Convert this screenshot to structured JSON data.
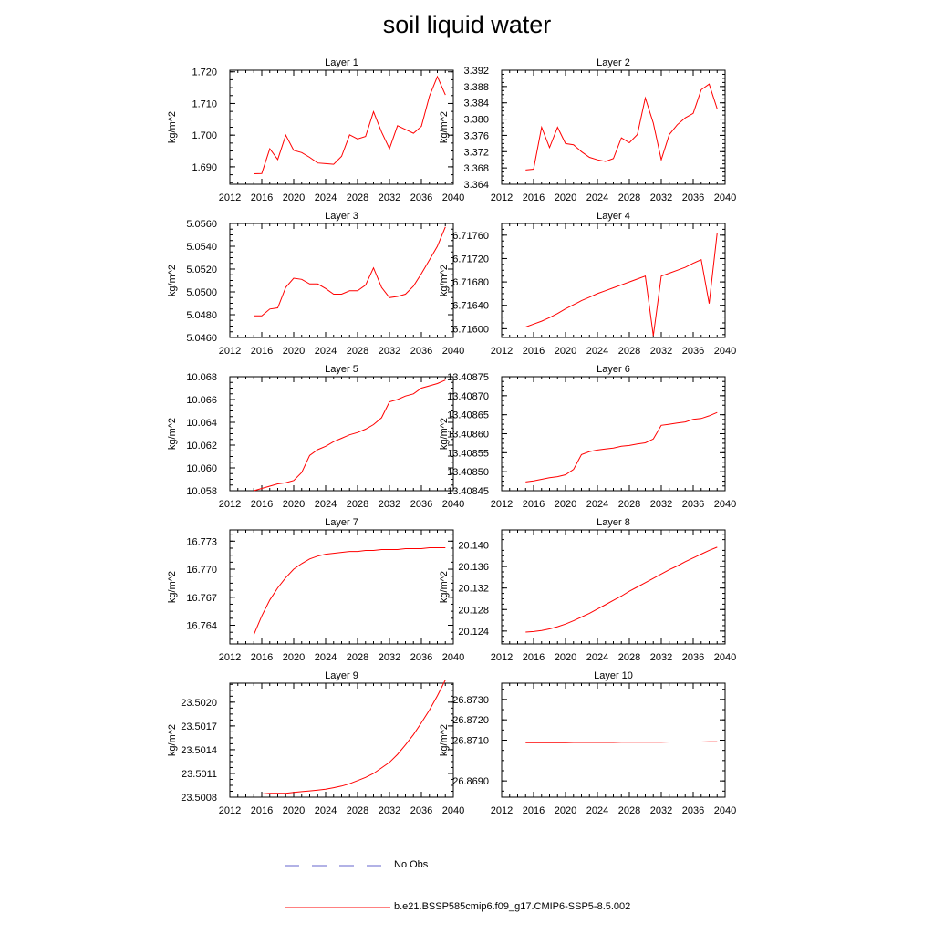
{
  "figure": {
    "title": "soil liquid water"
  },
  "legend": [
    {
      "label": "No Obs",
      "color": "#6666cc",
      "style": "dashed"
    },
    {
      "label": "b.e21.BSSP585cmip6.f09_g17.CMIP6-SSP5-8.5.002",
      "color": "#ff0000",
      "style": "solid"
    }
  ],
  "chart_data": [
    {
      "type": "line",
      "title": "Layer 1",
      "ylabel": "kg/m^2",
      "xlim": [
        2012,
        2040
      ],
      "ylim": [
        1.6845,
        1.7205
      ],
      "xticks": [
        "2012",
        "2016",
        "2020",
        "2024",
        "2028",
        "2032",
        "2036",
        "2040"
      ],
      "yticks": [
        "1.690",
        "1.700",
        "1.710",
        "1.720"
      ],
      "ytick_values": [
        1.69,
        1.7,
        1.71,
        1.72
      ],
      "series": [
        {
          "color": "#ff0000",
          "x": [
            2015,
            2016,
            2017,
            2018,
            2019,
            2020,
            2021,
            2022,
            2023,
            2024,
            2025,
            2026,
            2027,
            2028,
            2029,
            2030,
            2031,
            2032,
            2033,
            2034,
            2035,
            2036,
            2037,
            2038,
            2039
          ],
          "y": [
            1.6878,
            1.6879,
            1.6957,
            1.6923,
            1.7,
            1.6952,
            1.6945,
            1.693,
            1.6912,
            1.691,
            1.6908,
            1.6933,
            1.7001,
            1.6988,
            1.6996,
            1.7074,
            1.701,
            1.6957,
            1.703,
            1.7018,
            1.7006,
            1.7028,
            1.7123,
            1.7185,
            1.7127
          ]
        }
      ]
    },
    {
      "type": "line",
      "title": "Layer 2",
      "ylabel": "kg/m^2",
      "xlim": [
        2012,
        2040
      ],
      "ylim": [
        3.364,
        3.392
      ],
      "xticks": [
        "2012",
        "2016",
        "2020",
        "2024",
        "2028",
        "2032",
        "2036",
        "2040"
      ],
      "yticks": [
        "3.364",
        "3.368",
        "3.372",
        "3.376",
        "3.380",
        "3.384",
        "3.388",
        "3.392"
      ],
      "ytick_values": [
        3.364,
        3.368,
        3.372,
        3.376,
        3.38,
        3.384,
        3.388,
        3.392
      ],
      "series": [
        {
          "color": "#ff0000",
          "x": [
            2015,
            2016,
            2017,
            2018,
            2019,
            2020,
            2021,
            2022,
            2023,
            2024,
            2025,
            2026,
            2027,
            2028,
            2029,
            2030,
            2031,
            2032,
            2033,
            2034,
            2035,
            2036,
            2037,
            2038,
            2039
          ],
          "y": [
            3.3675,
            3.3677,
            3.378,
            3.373,
            3.378,
            3.374,
            3.3737,
            3.372,
            3.3706,
            3.37,
            3.3696,
            3.3703,
            3.3754,
            3.3742,
            3.3762,
            3.3852,
            3.379,
            3.37,
            3.3762,
            3.3786,
            3.3803,
            3.3814,
            3.3872,
            3.3886,
            3.3825
          ]
        }
      ]
    },
    {
      "type": "line",
      "title": "Layer 3",
      "ylabel": "kg/m^2",
      "xlim": [
        2012,
        2040
      ],
      "ylim": [
        5.046,
        5.056
      ],
      "xticks": [
        "2012",
        "2016",
        "2020",
        "2024",
        "2028",
        "2032",
        "2036",
        "2040"
      ],
      "yticks": [
        "5.0460",
        "5.0480",
        "5.0500",
        "5.0520",
        "5.0540",
        "5.0560"
      ],
      "ytick_values": [
        5.046,
        5.048,
        5.05,
        5.052,
        5.054,
        5.056
      ],
      "series": [
        {
          "color": "#ff0000",
          "x": [
            2015,
            2016,
            2017,
            2018,
            2019,
            2020,
            2021,
            2022,
            2023,
            2024,
            2025,
            2026,
            2027,
            2028,
            2029,
            2030,
            2031,
            2032,
            2033,
            2034,
            2035,
            2036,
            2037,
            2038,
            2039
          ],
          "y": [
            5.0479,
            5.0479,
            5.0485,
            5.0486,
            5.0504,
            5.0512,
            5.0511,
            5.0507,
            5.0507,
            5.0503,
            5.0498,
            5.0498,
            5.0501,
            5.0501,
            5.0506,
            5.0521,
            5.0504,
            5.0495,
            5.0496,
            5.0498,
            5.0505,
            5.0516,
            5.0528,
            5.054,
            5.0557
          ]
        }
      ]
    },
    {
      "type": "line",
      "title": "Layer 4",
      "ylabel": "kg/m^2",
      "xlim": [
        2012,
        2040
      ],
      "ylim": [
        6.71585,
        6.7178
      ],
      "xticks": [
        "2012",
        "2016",
        "2020",
        "2024",
        "2028",
        "2032",
        "2036",
        "2040"
      ],
      "yticks": [
        "6.71600",
        "6.71640",
        "6.71680",
        "6.71720",
        "6.71760"
      ],
      "ytick_values": [
        6.716,
        6.7164,
        6.7168,
        6.7172,
        6.7176
      ],
      "series": [
        {
          "color": "#ff0000",
          "x": [
            2015,
            2016,
            2017,
            2018,
            2019,
            2020,
            2021,
            2022,
            2023,
            2024,
            2025,
            2026,
            2027,
            2028,
            2029,
            2030,
            2031,
            2032,
            2033,
            2034,
            2035,
            2036,
            2037,
            2038,
            2039
          ],
          "y": [
            6.71603,
            6.71608,
            6.71613,
            6.71619,
            6.71626,
            6.71634,
            6.71641,
            6.71648,
            6.71654,
            6.7166,
            6.71665,
            6.7167,
            6.71675,
            6.7168,
            6.71685,
            6.7169,
            6.71588,
            6.7169,
            6.71695,
            6.717,
            6.71705,
            6.71712,
            6.71718,
            6.71643,
            6.71764
          ]
        }
      ]
    },
    {
      "type": "line",
      "title": "Layer 5",
      "ylabel": "kg/m^2",
      "xlim": [
        2012,
        2040
      ],
      "ylim": [
        10.058,
        10.068
      ],
      "xticks": [
        "2012",
        "2016",
        "2020",
        "2024",
        "2028",
        "2032",
        "2036",
        "2040"
      ],
      "yticks": [
        "10.058",
        "10.060",
        "10.062",
        "10.064",
        "10.066",
        "10.068"
      ],
      "ytick_values": [
        10.058,
        10.06,
        10.062,
        10.064,
        10.066,
        10.068
      ],
      "series": [
        {
          "color": "#ff0000",
          "x": [
            2015,
            2016,
            2017,
            2018,
            2019,
            2020,
            2021,
            2022,
            2023,
            2024,
            2025,
            2026,
            2027,
            2028,
            2029,
            2030,
            2031,
            2032,
            2033,
            2034,
            2035,
            2036,
            2037,
            2038,
            2039
          ],
          "y": [
            10.058,
            10.0582,
            10.0584,
            10.0586,
            10.0587,
            10.0589,
            10.0596,
            10.0611,
            10.0616,
            10.0619,
            10.0623,
            10.0626,
            10.0629,
            10.0631,
            10.0634,
            10.0638,
            10.0644,
            10.0658,
            10.066,
            10.0663,
            10.0665,
            10.067,
            10.0672,
            10.0674,
            10.0677
          ]
        }
      ]
    },
    {
      "type": "line",
      "title": "Layer 6",
      "ylabel": "kg/m^2",
      "xlim": [
        2012,
        2040
      ],
      "ylim": [
        13.40845,
        13.40875
      ],
      "xticks": [
        "2012",
        "2016",
        "2020",
        "2024",
        "2028",
        "2032",
        "2036",
        "2040"
      ],
      "yticks": [
        "13.40845",
        "13.40850",
        "13.40855",
        "13.40860",
        "13.40865",
        "13.40870",
        "13.40875"
      ],
      "ytick_values": [
        13.40845,
        13.4085,
        13.40855,
        13.4086,
        13.40865,
        13.4087,
        13.40875
      ],
      "series": [
        {
          "color": "#ff0000",
          "x": [
            2015,
            2016,
            2017,
            2018,
            2019,
            2020,
            2021,
            2022,
            2023,
            2024,
            2025,
            2026,
            2027,
            2028,
            2029,
            2030,
            2031,
            2032,
            2033,
            2034,
            2035,
            2036,
            2037,
            2038,
            2039
          ],
          "y": [
            13.408473,
            13.408476,
            13.40848,
            13.408484,
            13.408487,
            13.408492,
            13.408506,
            13.408545,
            13.408553,
            13.408557,
            13.40856,
            13.408562,
            13.408567,
            13.408569,
            13.408573,
            13.408576,
            13.408586,
            13.408622,
            13.408625,
            13.408628,
            13.408631,
            13.408638,
            13.40864,
            13.408647,
            13.408656
          ]
        }
      ]
    },
    {
      "type": "line",
      "title": "Layer 7",
      "ylabel": "kg/m^2",
      "xlim": [
        2012,
        2040
      ],
      "ylim": [
        16.762,
        16.7742
      ],
      "xticks": [
        "2012",
        "2016",
        "2020",
        "2024",
        "2028",
        "2032",
        "2036",
        "2040"
      ],
      "yticks": [
        "16.764",
        "16.767",
        "16.770",
        "16.773"
      ],
      "ytick_values": [
        16.764,
        16.767,
        16.77,
        16.773
      ],
      "series": [
        {
          "color": "#ff0000",
          "x": [
            2015,
            2016,
            2017,
            2018,
            2019,
            2020,
            2021,
            2022,
            2023,
            2024,
            2025,
            2026,
            2027,
            2028,
            2029,
            2030,
            2031,
            2032,
            2033,
            2034,
            2035,
            2036,
            2037,
            2038,
            2039
          ],
          "y": [
            16.763,
            16.765,
            16.7667,
            16.768,
            16.7691,
            16.77,
            16.7706,
            16.7711,
            16.7714,
            16.7716,
            16.7717,
            16.7718,
            16.7719,
            16.7719,
            16.772,
            16.772,
            16.7721,
            16.7721,
            16.7721,
            16.7722,
            16.7722,
            16.7722,
            16.7723,
            16.7723,
            16.7723
          ]
        }
      ]
    },
    {
      "type": "line",
      "title": "Layer 8",
      "ylabel": "kg/m^2",
      "xlim": [
        2012,
        2040
      ],
      "ylim": [
        20.1216,
        20.1428
      ],
      "xticks": [
        "2012",
        "2016",
        "2020",
        "2024",
        "2028",
        "2032",
        "2036",
        "2040"
      ],
      "yticks": [
        "20.124",
        "20.128",
        "20.132",
        "20.136",
        "20.140"
      ],
      "ytick_values": [
        20.124,
        20.128,
        20.132,
        20.136,
        20.14
      ],
      "series": [
        {
          "color": "#ff0000",
          "x": [
            2015,
            2016,
            2017,
            2018,
            2019,
            2020,
            2021,
            2022,
            2023,
            2024,
            2025,
            2026,
            2027,
            2028,
            2029,
            2030,
            2031,
            2032,
            2033,
            2034,
            2035,
            2036,
            2037,
            2038,
            2039
          ],
          "y": [
            20.1238,
            20.1239,
            20.1241,
            20.1244,
            20.1248,
            20.1253,
            20.1259,
            20.1266,
            20.1273,
            20.1281,
            20.1289,
            20.1297,
            20.1305,
            20.1314,
            20.1322,
            20.133,
            20.1338,
            20.1346,
            20.1354,
            20.1361,
            20.1369,
            20.1376,
            20.1383,
            20.139,
            20.1396
          ]
        }
      ]
    },
    {
      "type": "line",
      "title": "Layer 9",
      "ylabel": "kg/m^2",
      "xlim": [
        2012,
        2040
      ],
      "ylim": [
        23.5008,
        23.50224
      ],
      "xticks": [
        "2012",
        "2016",
        "2020",
        "2024",
        "2028",
        "2032",
        "2036",
        "2040"
      ],
      "yticks": [
        "23.5008",
        "23.5011",
        "23.5014",
        "23.5017",
        "23.5020"
      ],
      "ytick_values": [
        23.5008,
        23.5011,
        23.5014,
        23.5017,
        23.502
      ],
      "series": [
        {
          "color": "#ff0000",
          "x": [
            2015,
            2016,
            2017,
            2018,
            2019,
            2020,
            2021,
            2022,
            2023,
            2024,
            2025,
            2026,
            2027,
            2028,
            2029,
            2030,
            2031,
            2032,
            2033,
            2034,
            2035,
            2036,
            2037,
            2038,
            2039
          ],
          "y": [
            23.50084,
            23.50084,
            23.50085,
            23.50085,
            23.50085,
            23.50086,
            23.50087,
            23.50088,
            23.50089,
            23.5009,
            23.50092,
            23.50094,
            23.50097,
            23.50101,
            23.50105,
            23.5011,
            23.50117,
            23.50124,
            23.50134,
            23.50146,
            23.50159,
            23.50174,
            23.5019,
            23.50208,
            23.50228
          ]
        }
      ]
    },
    {
      "type": "line",
      "title": "Layer 10",
      "ylabel": "kg/m^2",
      "xlim": [
        2012,
        2040
      ],
      "ylim": [
        26.8682,
        26.8738
      ],
      "xticks": [
        "2012",
        "2016",
        "2020",
        "2024",
        "2028",
        "2032",
        "2036",
        "2040"
      ],
      "yticks": [
        "26.8690",
        "26.8710",
        "26.8720",
        "26.8730"
      ],
      "ytick_values": [
        26.869,
        26.871,
        26.872,
        26.873
      ],
      "series": [
        {
          "color": "#ff0000",
          "x": [
            2015,
            2016,
            2017,
            2018,
            2019,
            2020,
            2021,
            2022,
            2023,
            2024,
            2025,
            2026,
            2027,
            2028,
            2029,
            2030,
            2031,
            2032,
            2033,
            2034,
            2035,
            2036,
            2037,
            2038,
            2039
          ],
          "y": [
            26.87088,
            26.87088,
            26.87088,
            26.87088,
            26.87088,
            26.87088,
            26.87089,
            26.87089,
            26.87089,
            26.87089,
            26.87089,
            26.87089,
            26.8709,
            26.8709,
            26.8709,
            26.8709,
            26.8709,
            26.8709,
            26.87091,
            26.87091,
            26.87091,
            26.87091,
            26.87091,
            26.87092,
            26.87092
          ]
        }
      ]
    }
  ]
}
